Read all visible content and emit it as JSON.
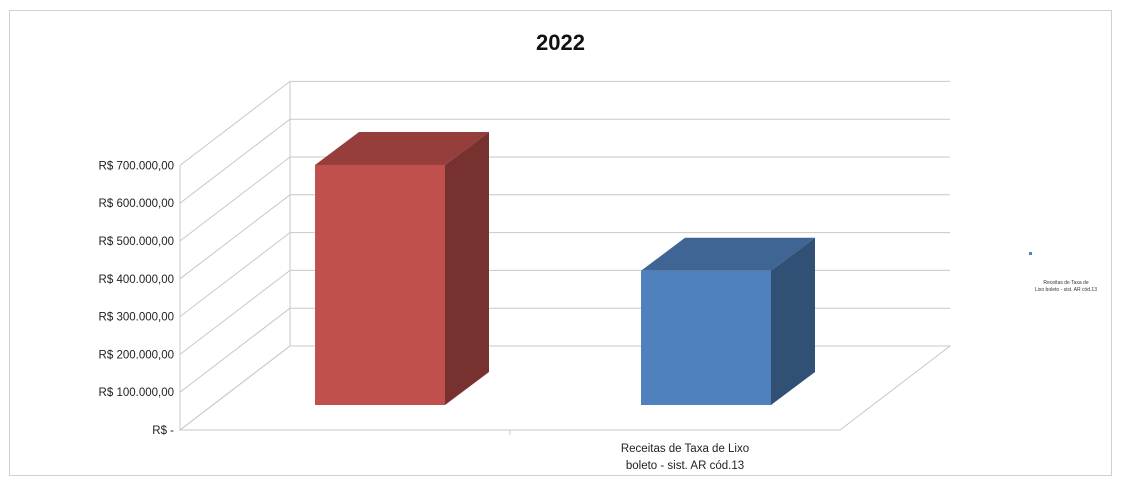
{
  "chart_data": {
    "type": "bar",
    "title": "2022",
    "categories": [
      "",
      "Receitas de Taxa de Lixo boleto - sist. AR cód.13"
    ],
    "category_lines": [
      [],
      [
        "Receitas de Taxa de Lixo",
        "boleto - sist. AR cód.13"
      ]
    ],
    "series": [
      {
        "values": [
          635000,
          0
        ],
        "color": "#c0504d"
      },
      {
        "values": [
          0,
          355000
        ],
        "color": "#4f81bd"
      }
    ],
    "bars": [
      {
        "value": 635000,
        "color": "#c0504d"
      },
      {
        "value": 355000,
        "color": "#4f81bd"
      }
    ],
    "ylim": [
      0,
      700000
    ],
    "y_ticks": [
      {
        "value": 0,
        "label": "R$ -"
      },
      {
        "value": 100000,
        "label": "R$ 100.000,00"
      },
      {
        "value": 200000,
        "label": "R$ 200.000,00"
      },
      {
        "value": 300000,
        "label": "R$ 300.000,00"
      },
      {
        "value": 400000,
        "label": "R$ 400.000,00"
      },
      {
        "value": 500000,
        "label": "R$ 500.000,00"
      },
      {
        "value": 600000,
        "label": "R$ 600.000,00"
      },
      {
        "value": 700000,
        "label": "R$ 700.000,00"
      }
    ],
    "grid": true,
    "legend": {
      "position": "right",
      "entries": [
        "Receitas de Taxa de Lixo boleto - sist. AR cód.13"
      ]
    }
  }
}
